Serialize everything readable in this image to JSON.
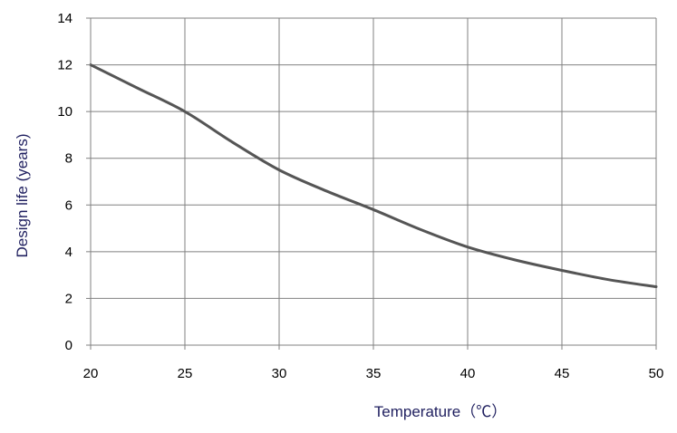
{
  "chart_data": {
    "type": "line",
    "title": "",
    "xlabel": "Temperature（℃）",
    "ylabel": "Design life (years)",
    "xlim": [
      20,
      50
    ],
    "ylim": [
      0,
      14
    ],
    "xticks": [
      "20",
      "25",
      "30",
      "35",
      "40",
      "45",
      "50"
    ],
    "yticks": [
      "0",
      "2",
      "4",
      "6",
      "8",
      "10",
      "12",
      "14"
    ],
    "grid": true,
    "legend": "none",
    "series": [
      {
        "x": [
          20,
          22.5,
          25,
          27.5,
          30,
          32.5,
          35,
          37.5,
          40,
          42.5,
          45,
          47.5,
          50
        ],
        "values": [
          12,
          11,
          10,
          8.7,
          7.5,
          6.6,
          5.8,
          4.95,
          4.2,
          3.65,
          3.2,
          2.8,
          2.5
        ],
        "color": "#555555"
      }
    ],
    "colors": {
      "grid": "#808080",
      "axis_title": "#1f1f5f",
      "line": "#555555"
    }
  }
}
